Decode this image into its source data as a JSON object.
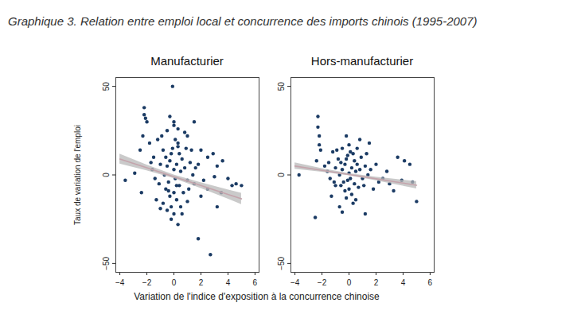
{
  "title": "Graphique 3. Relation entre emploi local et concurrence des imports chinois (1995-2007)",
  "x_label": "Variation de l'indice d'exposition à la concurrence chinoise",
  "y_label": "Taux de variation de l'emploi",
  "chart_data": [
    {
      "type": "scatter",
      "title": "Manufacturier",
      "xlim": [
        -4.3,
        6.3
      ],
      "xticks": [
        -4,
        -2,
        0,
        2,
        4,
        6
      ],
      "ylim": [
        -55,
        55
      ],
      "yticks": [
        -50,
        0,
        50
      ],
      "points": {
        "color": "#1b3b64",
        "x": [
          -0.5,
          -0.3,
          -0.2,
          0,
          0.1,
          0.2,
          -0.4,
          -0.6,
          -0.1,
          0.3,
          0.4,
          0.5,
          -0.7,
          -0.8,
          -1,
          -1.2,
          -1.1,
          0,
          0.2,
          -0.3,
          0.6,
          0.8,
          1,
          0.7,
          -0.9,
          -0.5,
          0.1,
          0.4,
          -0.2,
          0.9,
          1.2,
          1.4,
          -1.5,
          -1.4,
          -1.6,
          0,
          0.5,
          -0.6,
          1.1,
          1.6,
          -3.6,
          -2.2,
          -2.2,
          -2.1,
          -2,
          -2.3,
          -2.5,
          -1.8,
          -2.4,
          -2.9,
          -0.1,
          -0.3,
          0,
          0.3,
          1.5,
          1,
          1.3,
          2,
          2.5,
          2.9,
          3.2,
          3.6,
          4,
          4.3,
          4.6,
          5,
          3.5,
          3.2,
          2.7,
          1.8,
          0.3,
          0,
          -0.5,
          1,
          2,
          1.5,
          2.5,
          -1.3,
          -0.8,
          0.6,
          -0.2,
          0.3,
          1.8,
          2.2,
          3,
          -1.7,
          -0.4,
          0.8,
          0.2,
          -1
        ],
        "y": [
          5,
          8,
          12,
          3,
          -2,
          6,
          -4,
          10,
          15,
          18,
          -6,
          2,
          0,
          14,
          6,
          20,
          -5,
          -10,
          -14,
          -12,
          9,
          4,
          -3,
          -10,
          22,
          25,
          20,
          12,
          -18,
          15,
          7,
          0,
          10,
          -2,
          3,
          28,
          -18,
          -8,
          -8,
          4,
          -3,
          38,
          34,
          32,
          30,
          22,
          14,
          18,
          -10,
          1,
          50,
          33,
          30,
          26,
          30,
          22,
          14,
          14,
          10,
          12,
          5,
          8,
          -2,
          -6,
          -5,
          -6,
          -10,
          -18,
          -45,
          -36,
          -28,
          -22,
          -20,
          -15,
          -12,
          -5,
          -8,
          -14,
          -16,
          -22,
          -25,
          16,
          6,
          -3,
          -1,
          7,
          -9,
          24,
          -6,
          -19
        ]
      },
      "fit": {
        "color": "#c4a4ac",
        "x": [
          -4,
          -2,
          0,
          2,
          4,
          5
        ],
        "y": [
          9,
          4,
          -1,
          -6,
          -11,
          -13.5
        ],
        "lower": [
          6.2,
          2.4,
          -2,
          -7.6,
          -13.6,
          -16.7
        ],
        "upper": [
          11.8,
          5.6,
          0,
          -4.4,
          -8.4,
          -10.3
        ]
      }
    },
    {
      "type": "scatter",
      "title": "Hors-manufacturier",
      "xlim": [
        -4.3,
        6.3
      ],
      "xticks": [
        -4,
        -2,
        0,
        2,
        4,
        6
      ],
      "ylim": [
        -55,
        55
      ],
      "yticks": [
        -50,
        0,
        50
      ],
      "points": {
        "color": "#1b3b64",
        "x": [
          -0.5,
          -0.3,
          -0.2,
          0,
          0.1,
          0.2,
          -0.4,
          -0.6,
          -0.1,
          0.3,
          0.4,
          0.5,
          -0.7,
          -0.8,
          -1,
          -1.2,
          -1.1,
          0,
          0.2,
          -0.3,
          0.6,
          0.8,
          1,
          0.7,
          -0.9,
          -0.5,
          0.1,
          0.4,
          -0.2,
          0.9,
          1.2,
          1.4,
          -1.5,
          -1.4,
          -1.6,
          0,
          0.5,
          -0.6,
          1.1,
          1.6,
          -2.3,
          -2.3,
          -2.2,
          -2.2,
          -2.1,
          -2.4,
          -3.7,
          -2.5,
          -0.2,
          0.8,
          1.5,
          3.6,
          4.1,
          4.5,
          5,
          4.7,
          3,
          2.5,
          1.2,
          -0.5,
          2,
          1.8,
          2.8,
          3.3,
          -1.8,
          -1.3,
          0.3,
          -0.1,
          1.3,
          2.2,
          -0.7,
          0.6,
          -1,
          3.9
        ],
        "y": [
          3,
          6,
          9,
          1,
          -2,
          4,
          -4,
          7,
          11,
          12,
          -5,
          2,
          0,
          9,
          4,
          13,
          -4,
          -8,
          -11,
          -9,
          6,
          3,
          -2,
          -7,
          14,
          15,
          13,
          8,
          -13,
          10,
          5,
          0,
          7,
          -2,
          2,
          17,
          -14,
          -6,
          -6,
          3,
          33,
          27,
          22,
          17,
          14,
          8,
          0,
          -24,
          22,
          20,
          18,
          10,
          8,
          6,
          -15,
          -4,
          -5,
          -2,
          -22,
          -21,
          6,
          -8,
          2,
          -9,
          5,
          -12,
          -16,
          -3,
          12,
          -4,
          -18,
          15,
          -6,
          -3
        ]
      },
      "fit": {
        "color": "#c4a4ac",
        "x": [
          -4,
          -2,
          0,
          2,
          4,
          5
        ],
        "y": [
          5,
          2.6,
          0.2,
          -2.2,
          -4.6,
          -5.8
        ],
        "lower": [
          3.2,
          1.6,
          -0.4,
          -3.2,
          -6.3,
          -7.9
        ],
        "upper": [
          6.8,
          3.6,
          0.8,
          -1.2,
          -2.9,
          -3.7
        ]
      }
    }
  ]
}
